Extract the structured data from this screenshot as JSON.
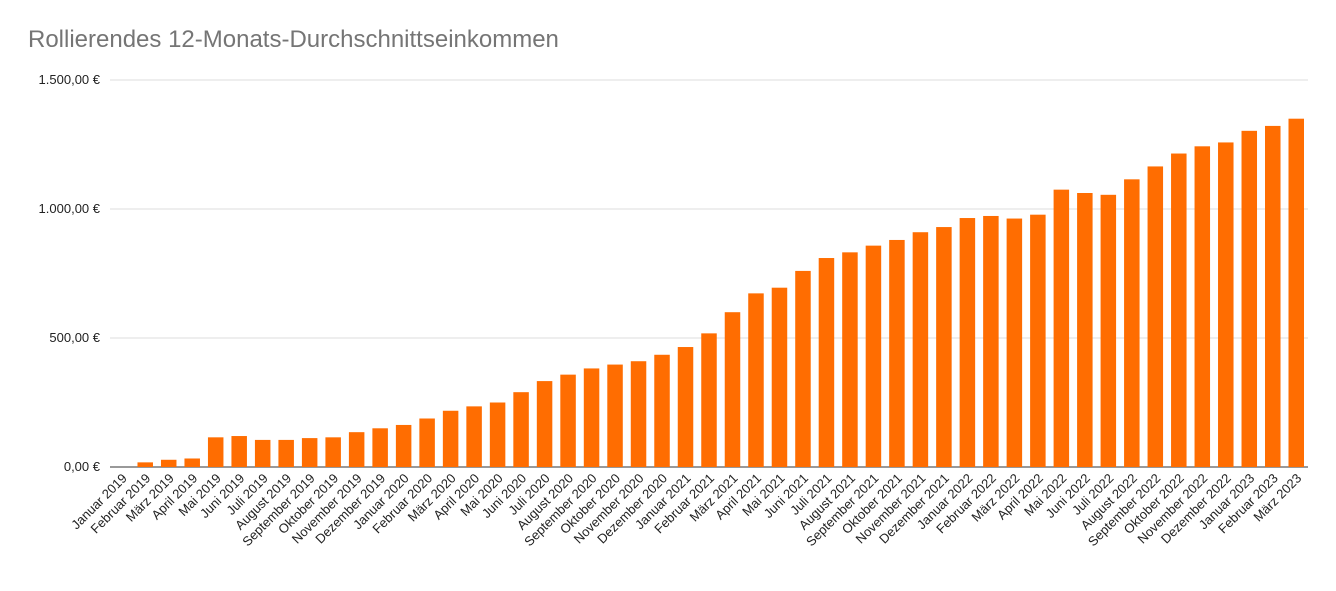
{
  "chart_data": {
    "type": "bar",
    "title": "Rollierendes 12-Monats-Durchschnittseinkommen",
    "xlabel": "",
    "ylabel": "",
    "ylim": [
      0,
      1500
    ],
    "yticks": [
      {
        "value": 0,
        "label": "0,00 €"
      },
      {
        "value": 500,
        "label": "500,00 €"
      },
      {
        "value": 1000,
        "label": "1.000,00 €"
      },
      {
        "value": 1500,
        "label": "1.500,00 €"
      }
    ],
    "grid": true,
    "bar_color": "#ff6d01",
    "categories": [
      "Januar 2019",
      "Februar 2019",
      "März 2019",
      "April 2019",
      "Mai 2019",
      "Juni 2019",
      "Juli 2019",
      "August 2019",
      "September 2019",
      "Oktober 2019",
      "November 2019",
      "Dezember 2019",
      "Januar 2020",
      "Februar 2020",
      "März 2020",
      "April 2020",
      "Mai 2020",
      "Juni 2020",
      "Juli 2020",
      "August 2020",
      "September 2020",
      "Oktober 2020",
      "November 2020",
      "Dezember 2020",
      "Januar 2021",
      "Februar 2021",
      "März 2021",
      "April 2021",
      "Mai 2021",
      "Juni 2021",
      "Juli 2021",
      "August 2021",
      "September 2021",
      "Oktober 2021",
      "November 2021",
      "Dezember 2021",
      "Januar 2022",
      "Februar 2022",
      "März 2022",
      "April 2022",
      "Mai 2022",
      "Juni 2022",
      "Juli 2022",
      "August 2022",
      "September 2022",
      "Oktober 2022",
      "November 2022",
      "Dezember 2022",
      "Januar 2023",
      "Februar 2023",
      "März 2023"
    ],
    "values": [
      0,
      18,
      28,
      33,
      115,
      120,
      105,
      105,
      112,
      115,
      135,
      150,
      163,
      188,
      218,
      235,
      250,
      290,
      333,
      358,
      382,
      397,
      410,
      435,
      465,
      518,
      600,
      673,
      695,
      760,
      810,
      832,
      858,
      880,
      910,
      930,
      965,
      973,
      963,
      978,
      1075,
      1062,
      1055,
      1115,
      1165,
      1215,
      1243,
      1258,
      1303,
      1322,
      1350
    ]
  }
}
